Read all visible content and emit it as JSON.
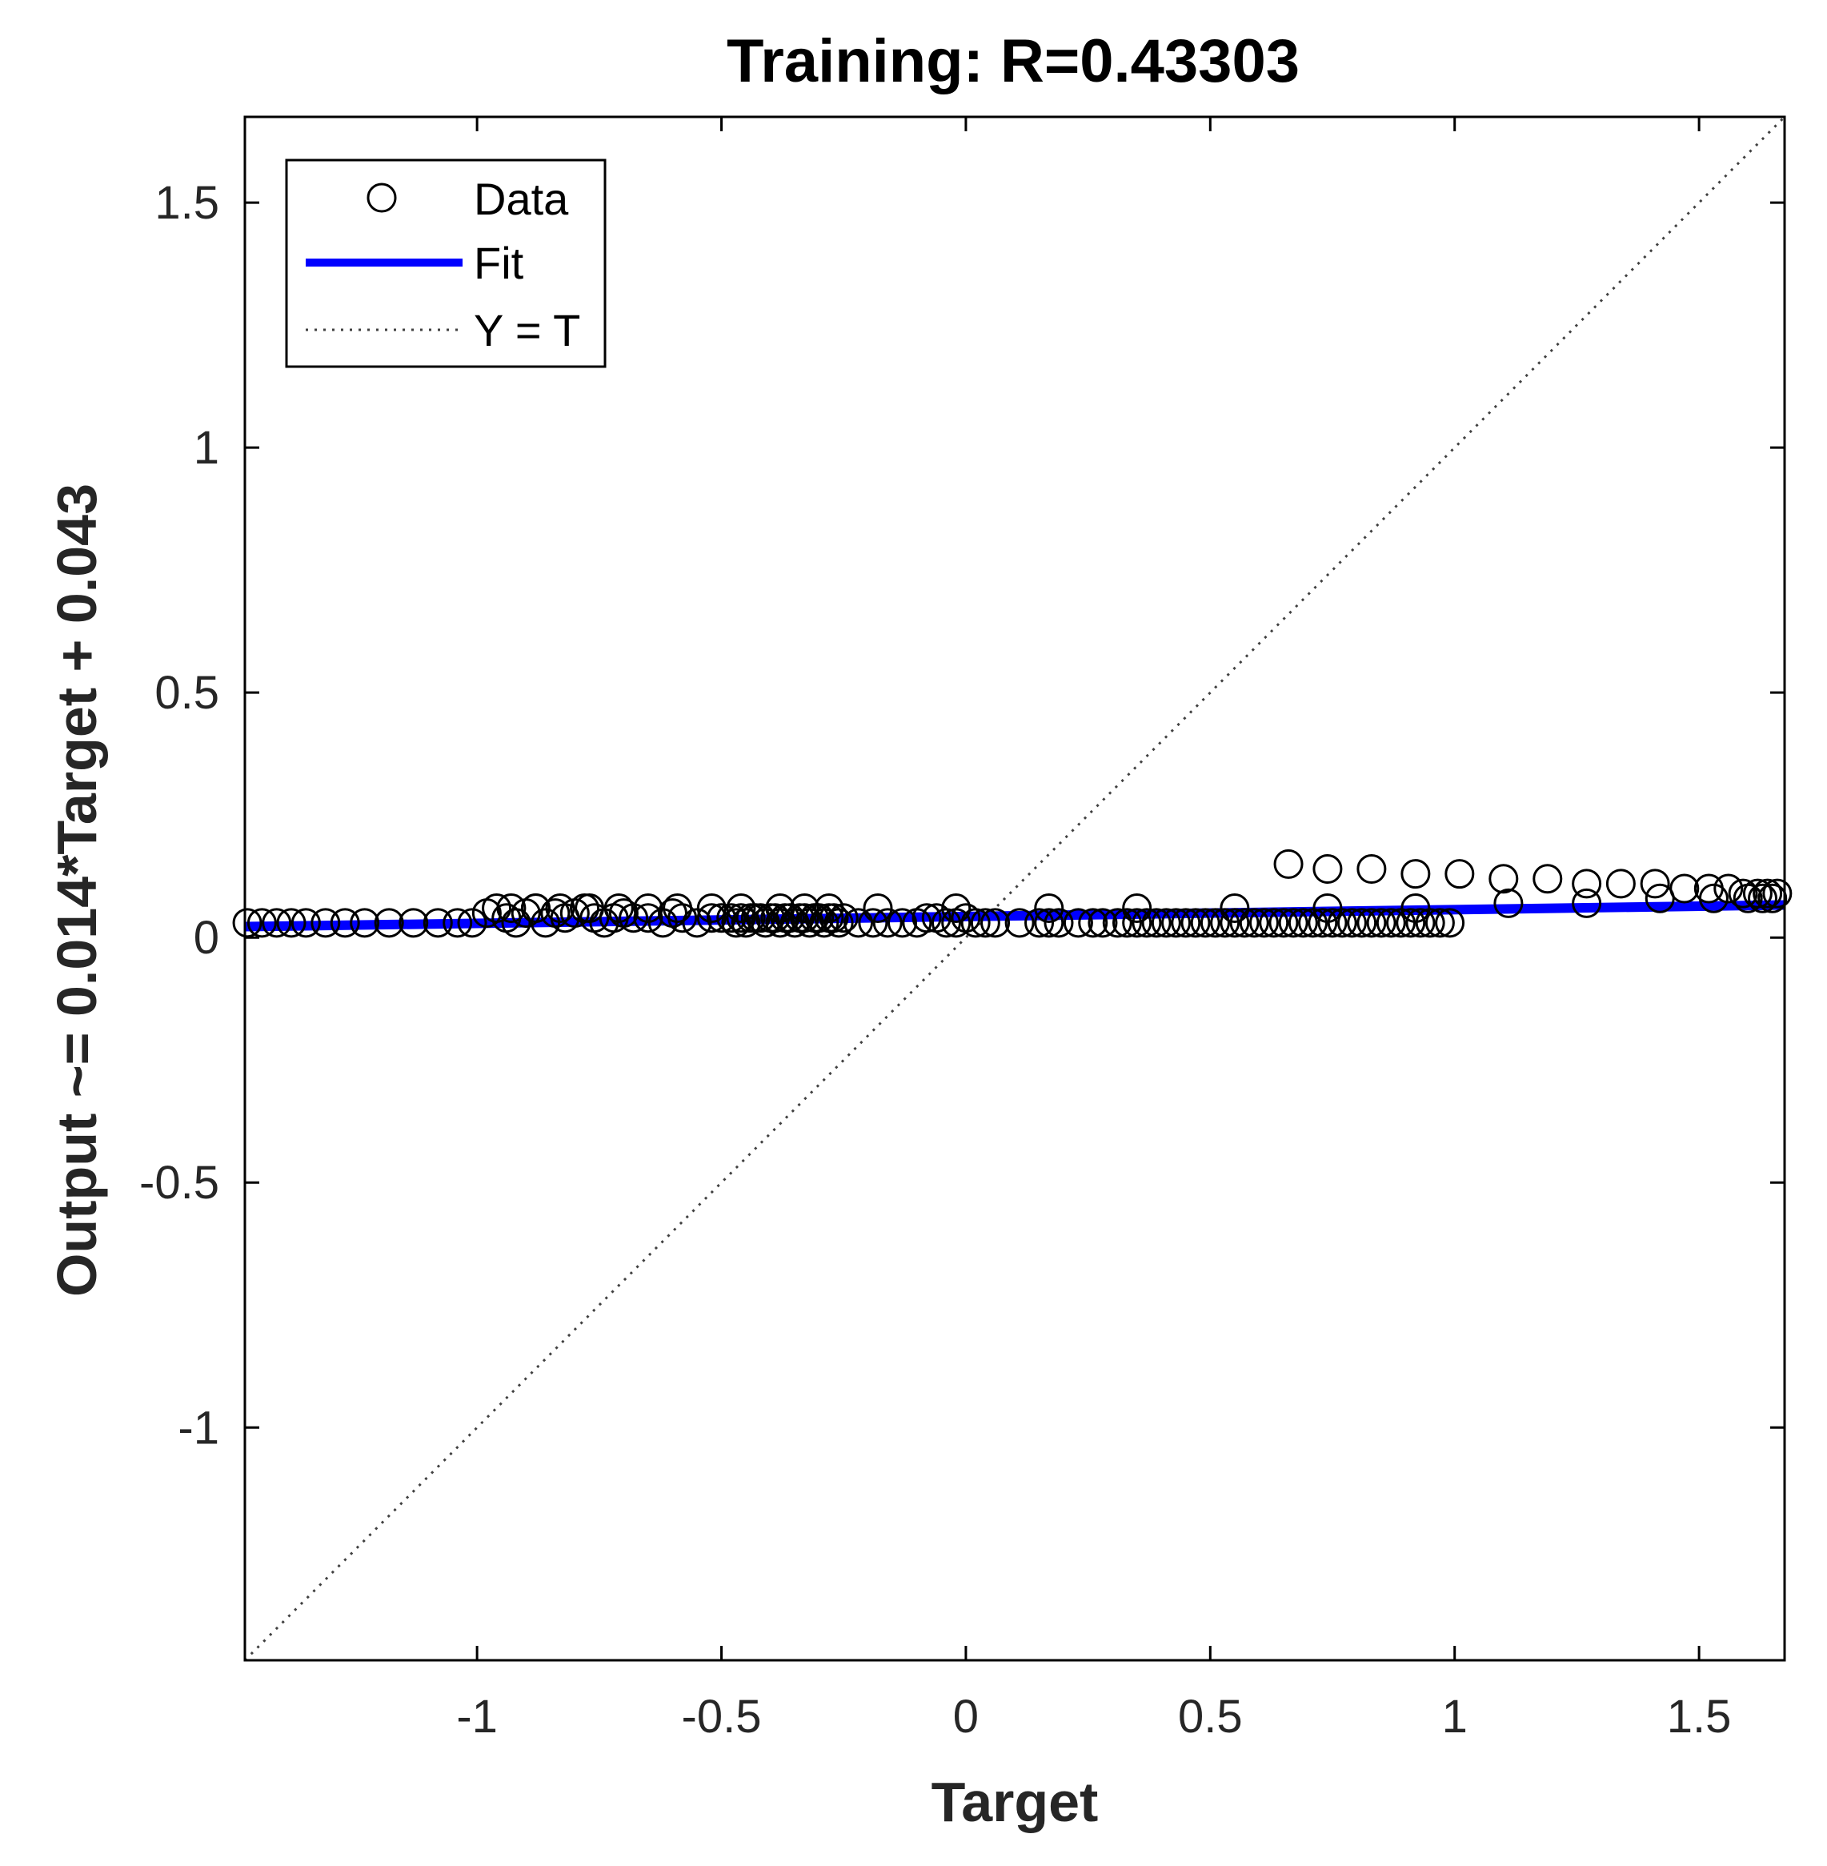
{
  "chart_data": {
    "type": "scatter",
    "title": "Training: R=0.43303",
    "xlabel": "Target",
    "ylabel": "Output ~= 0.014*Target + 0.043",
    "xlim": [
      -1.475,
      1.675
    ],
    "ylim": [
      -1.475,
      1.675
    ],
    "x_ticks": [
      -1,
      -0.5,
      0,
      0.5,
      1,
      1.5
    ],
    "x_tick_labels": [
      "-1",
      "-0.5",
      "0",
      "0.5",
      "1",
      "1.5"
    ],
    "y_ticks": [
      -1,
      -0.5,
      0,
      0.5,
      1,
      1.5
    ],
    "y_tick_labels": [
      "-1",
      "-0.5",
      "0",
      "0.5",
      "1",
      "1.5"
    ],
    "grid": false,
    "legend": {
      "position": "top-left",
      "entries": [
        {
          "label": "Data",
          "kind": "marker"
        },
        {
          "label": "Fit",
          "kind": "line"
        },
        {
          "label": "Y = T",
          "kind": "dotted"
        }
      ]
    },
    "fit": {
      "slope": 0.014,
      "intercept": 0.043,
      "color": "#0000ff"
    },
    "identity_line": {
      "color": "#404040"
    },
    "series": [
      {
        "name": "Data",
        "marker": "circle-open",
        "color": "#000000",
        "x": [
          -1.47,
          -1.44,
          -1.41,
          -1.38,
          -1.35,
          -1.31,
          -1.27,
          -1.23,
          -1.18,
          -1.13,
          -1.08,
          -1.04,
          -1.01,
          -0.98,
          -0.96,
          -0.94,
          -0.92,
          -0.9,
          -0.88,
          -0.86,
          -0.84,
          -0.82,
          -0.8,
          -0.78,
          -0.76,
          -0.74,
          -0.72,
          -0.7,
          -0.68,
          -0.65,
          -0.62,
          -0.6,
          -0.58,
          -0.55,
          -0.52,
          -0.5,
          -0.48,
          -0.47,
          -0.46,
          -0.45,
          -0.44,
          -0.43,
          -0.42,
          -0.41,
          -0.4,
          -0.39,
          -0.38,
          -0.37,
          -0.36,
          -0.35,
          -0.34,
          -0.33,
          -0.32,
          -0.31,
          -0.3,
          -0.29,
          -0.28,
          -0.27,
          -0.26,
          -0.25,
          -0.22,
          -0.19,
          -0.16,
          -0.13,
          -0.1,
          -0.08,
          -0.06,
          -0.04,
          -0.02,
          0.0,
          0.02,
          0.04,
          0.06,
          0.11,
          0.15,
          0.17,
          0.19,
          0.23,
          0.26,
          0.28,
          0.31,
          0.33,
          0.35,
          0.37,
          0.39,
          0.41,
          0.43,
          0.45,
          0.47,
          0.49,
          0.51,
          0.53,
          0.55,
          0.57,
          0.59,
          0.61,
          0.63,
          0.65,
          0.67,
          0.69,
          0.71,
          0.73,
          0.75,
          0.77,
          0.79,
          0.81,
          0.83,
          0.85,
          0.87,
          0.89,
          0.91,
          0.93,
          0.95,
          0.97,
          0.99,
          -0.93,
          -0.88,
          -0.83,
          -0.77,
          -0.71,
          -0.65,
          -0.59,
          -0.52,
          -0.46,
          -0.38,
          -0.33,
          -0.28,
          -0.18,
          -0.02,
          0.17,
          0.35,
          0.55,
          0.74,
          0.92,
          1.11,
          1.27,
          1.42,
          1.53,
          1.6,
          1.63,
          1.65,
          0.66,
          0.74,
          0.83,
          0.92,
          1.01,
          1.1,
          1.19,
          1.27,
          1.34,
          1.41,
          1.47,
          1.52,
          1.56,
          1.59,
          1.62,
          1.64,
          1.66
        ],
        "y": [
          0.03,
          0.03,
          0.03,
          0.03,
          0.03,
          0.03,
          0.03,
          0.03,
          0.03,
          0.03,
          0.03,
          0.03,
          0.03,
          0.05,
          0.06,
          0.04,
          0.03,
          0.05,
          0.06,
          0.03,
          0.05,
          0.04,
          0.05,
          0.06,
          0.04,
          0.03,
          0.04,
          0.05,
          0.04,
          0.04,
          0.03,
          0.05,
          0.04,
          0.03,
          0.04,
          0.04,
          0.04,
          0.03,
          0.04,
          0.03,
          0.04,
          0.04,
          0.04,
          0.03,
          0.04,
          0.04,
          0.03,
          0.04,
          0.04,
          0.03,
          0.04,
          0.04,
          0.03,
          0.04,
          0.04,
          0.03,
          0.04,
          0.04,
          0.03,
          0.04,
          0.03,
          0.03,
          0.03,
          0.03,
          0.03,
          0.04,
          0.04,
          0.03,
          0.03,
          0.04,
          0.03,
          0.03,
          0.03,
          0.03,
          0.03,
          0.03,
          0.03,
          0.03,
          0.03,
          0.03,
          0.03,
          0.03,
          0.03,
          0.03,
          0.03,
          0.03,
          0.03,
          0.03,
          0.03,
          0.03,
          0.03,
          0.03,
          0.03,
          0.03,
          0.03,
          0.03,
          0.03,
          0.03,
          0.03,
          0.03,
          0.03,
          0.03,
          0.03,
          0.03,
          0.03,
          0.03,
          0.03,
          0.03,
          0.03,
          0.03,
          0.03,
          0.03,
          0.03,
          0.03,
          0.03,
          0.06,
          0.06,
          0.06,
          0.06,
          0.06,
          0.06,
          0.06,
          0.06,
          0.06,
          0.06,
          0.06,
          0.06,
          0.06,
          0.06,
          0.06,
          0.06,
          0.06,
          0.06,
          0.06,
          0.07,
          0.07,
          0.08,
          0.08,
          0.08,
          0.08,
          0.08,
          0.15,
          0.14,
          0.14,
          0.13,
          0.13,
          0.12,
          0.12,
          0.11,
          0.11,
          0.11,
          0.1,
          0.1,
          0.1,
          0.09,
          0.09,
          0.09,
          0.09
        ]
      }
    ]
  }
}
